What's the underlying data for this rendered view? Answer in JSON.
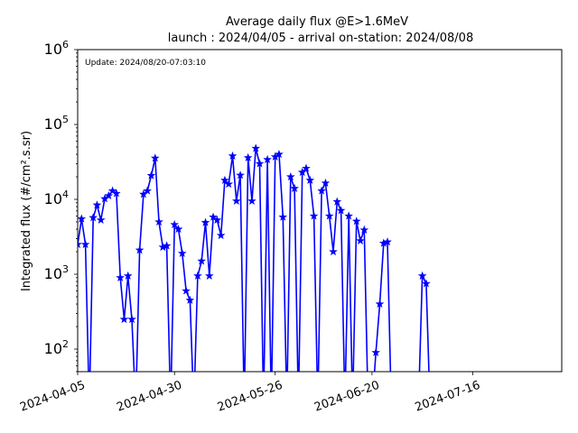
{
  "chart_data": {
    "type": "line",
    "title": "Average daily flux @E>1.6MeV",
    "subtitle": "launch : 2024/04/05 - arrival on-station: 2024/08/08",
    "annotation": "Update: 2024/08/20-07:03:10",
    "xlabel": "",
    "ylabel": "Integrated flux (#/cm².s.sr)",
    "y_scale": "log",
    "xlim": [
      "2024-04-05",
      "2024-08-08"
    ],
    "ylim": [
      50,
      1000000
    ],
    "x_ticks": [
      "2024-04-05",
      "2024-04-30",
      "2024-05-26",
      "2024-06-20",
      "2024-07-16"
    ],
    "y_ticks": [
      {
        "value": 100,
        "base": "10",
        "exp": "2"
      },
      {
        "value": 1000,
        "base": "10",
        "exp": "3"
      },
      {
        "value": 10000,
        "base": "10",
        "exp": "4"
      },
      {
        "value": 100000,
        "base": "10",
        "exp": "5"
      },
      {
        "value": 1000000,
        "base": "10",
        "exp": "6"
      }
    ],
    "grid": false,
    "legend": "none",
    "color": "#0000ff",
    "marker": "star",
    "series": [
      {
        "x": [
          "2024-04-05",
          "2024-04-06",
          "2024-04-07",
          "2024-04-08",
          "2024-04-09",
          "2024-04-10",
          "2024-04-11",
          "2024-04-12",
          "2024-04-13",
          "2024-04-14",
          "2024-04-15",
          "2024-04-16",
          "2024-04-17",
          "2024-04-18",
          "2024-04-19",
          "2024-04-20",
          "2024-04-21",
          "2024-04-22",
          "2024-04-23",
          "2024-04-24",
          "2024-04-25",
          "2024-04-26",
          "2024-04-27",
          "2024-04-28",
          "2024-04-29",
          "2024-04-30",
          "2024-05-01",
          "2024-05-02",
          "2024-05-03",
          "2024-05-04",
          "2024-05-05",
          "2024-05-06",
          "2024-05-07",
          "2024-05-08",
          "2024-05-09",
          "2024-05-10",
          "2024-05-11",
          "2024-05-12",
          "2024-05-13",
          "2024-05-14",
          "2024-05-15",
          "2024-05-16",
          "2024-05-17",
          "2024-05-18",
          "2024-05-19",
          "2024-05-20",
          "2024-05-21",
          "2024-05-22",
          "2024-05-23",
          "2024-05-24",
          "2024-05-25",
          "2024-05-26",
          "2024-05-27",
          "2024-05-28",
          "2024-05-29",
          "2024-05-30",
          "2024-05-31",
          "2024-06-01",
          "2024-06-02",
          "2024-06-03",
          "2024-06-04",
          "2024-06-05",
          "2024-06-06",
          "2024-06-07",
          "2024-06-08",
          "2024-06-09",
          "2024-06-10",
          "2024-06-11",
          "2024-06-12",
          "2024-06-13",
          "2024-06-14",
          "2024-06-15",
          "2024-06-16",
          "2024-06-17",
          "2024-06-18",
          "2024-06-19",
          "2024-06-20",
          "2024-06-21",
          "2024-06-22",
          "2024-06-23",
          "2024-06-24",
          "2024-06-25",
          "2024-06-26",
          "2024-06-27",
          "2024-06-28",
          "2024-06-29",
          "2024-06-30",
          "2024-07-01",
          "2024-07-02",
          "2024-07-03",
          "2024-07-04",
          "2024-07-05"
        ],
        "values": [
          2500,
          5500,
          2500,
          0,
          5700,
          8400,
          5300,
          10200,
          11200,
          13000,
          12000,
          900,
          250,
          950,
          250,
          0,
          2100,
          11700,
          13000,
          20800,
          35500,
          5000,
          2300,
          2400,
          0,
          4600,
          4000,
          1900,
          600,
          450,
          0,
          950,
          1500,
          4900,
          950,
          5800,
          5300,
          3300,
          18000,
          16000,
          38000,
          9500,
          21000,
          0,
          36000,
          9500,
          48000,
          30000,
          0,
          34000,
          0,
          37000,
          40000,
          5800,
          0,
          20000,
          14000,
          0,
          23000,
          26000,
          18000,
          6000,
          0,
          13000,
          16500,
          6000,
          2000,
          9300,
          7100,
          0,
          6000,
          0,
          5100,
          2800,
          3900,
          0,
          0,
          90,
          400,
          2600,
          2700,
          0,
          0,
          0,
          0,
          0,
          0,
          0,
          0,
          950,
          750,
          0
        ]
      }
    ]
  }
}
